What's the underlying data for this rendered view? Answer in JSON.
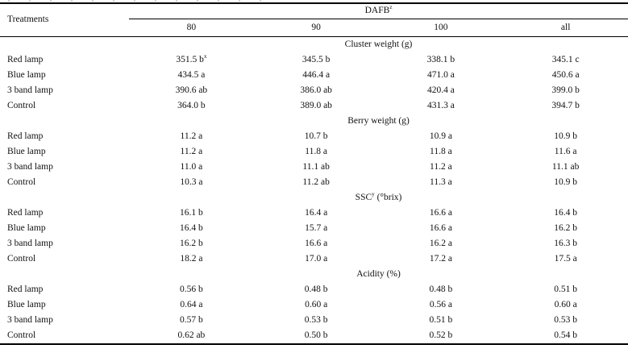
{
  "table": {
    "corner_header": "Treatments",
    "group_header": "DAFB^z",
    "column_headers": [
      "80",
      "90",
      "100",
      "all"
    ],
    "sections": [
      {
        "title": "Cluster weight (g)",
        "rows": [
          {
            "label": "Red lamp",
            "values": [
              "351.5 b^x",
              "345.5 b",
              "338.1 b",
              "345.1 c"
            ]
          },
          {
            "label": "Blue lamp",
            "values": [
              "434.5 a",
              "446.4 a",
              "471.0 a",
              "450.6 a"
            ]
          },
          {
            "label": "3 band lamp",
            "values": [
              "390.6 ab",
              "386.0 ab",
              "420.4 a",
              "399.0 b"
            ]
          },
          {
            "label": "Control",
            "values": [
              "364.0 b",
              "389.0 ab",
              "431.3 a",
              "394.7 b"
            ]
          }
        ]
      },
      {
        "title": "Berry weight (g)",
        "rows": [
          {
            "label": "Red lamp",
            "values": [
              "11.2 a",
              "10.7 b",
              "10.9 a",
              "10.9 b"
            ]
          },
          {
            "label": "Blue lamp",
            "values": [
              "11.2 a",
              "11.8 a",
              "11.8 a",
              "11.6 a"
            ]
          },
          {
            "label": "3 band lamp",
            "values": [
              "11.0 a",
              "11.1 ab",
              "11.2 a",
              "11.1 ab"
            ]
          },
          {
            "label": "Control",
            "values": [
              "10.3 a",
              "11.2 ab",
              "11.3 a",
              "10.9 b"
            ]
          }
        ]
      },
      {
        "title": "SSC^y (°brix)",
        "rows": [
          {
            "label": "Red lamp",
            "values": [
              "16.1 b",
              "16.4 a",
              "16.6 a",
              "16.4 b"
            ]
          },
          {
            "label": "Blue lamp",
            "values": [
              "16.4 b",
              "15.7 a",
              "16.6 a",
              "16.2 b"
            ]
          },
          {
            "label": "3 band lamp",
            "values": [
              "16.2 b",
              "16.6 a",
              "16.2 a",
              "16.3 b"
            ]
          },
          {
            "label": "Control",
            "values": [
              "18.2 a",
              "17.0 a",
              "17.2 a",
              "17.5 a"
            ]
          }
        ]
      },
      {
        "title": "Acidity (%)",
        "rows": [
          {
            "label": "Red lamp",
            "values": [
              "0.56 b",
              "0.48 b",
              "0.48 b",
              "0.51 b"
            ]
          },
          {
            "label": "Blue lamp",
            "values": [
              "0.64 a",
              "0.60 a",
              "0.56 a",
              "0.60 a"
            ]
          },
          {
            "label": "3 band lamp",
            "values": [
              "0.57 b",
              "0.53 b",
              "0.51 b",
              "0.53 b"
            ]
          },
          {
            "label": "Control",
            "values": [
              "0.62 ab",
              "0.50 b",
              "0.52 b",
              "0.54 b"
            ]
          }
        ]
      }
    ]
  }
}
